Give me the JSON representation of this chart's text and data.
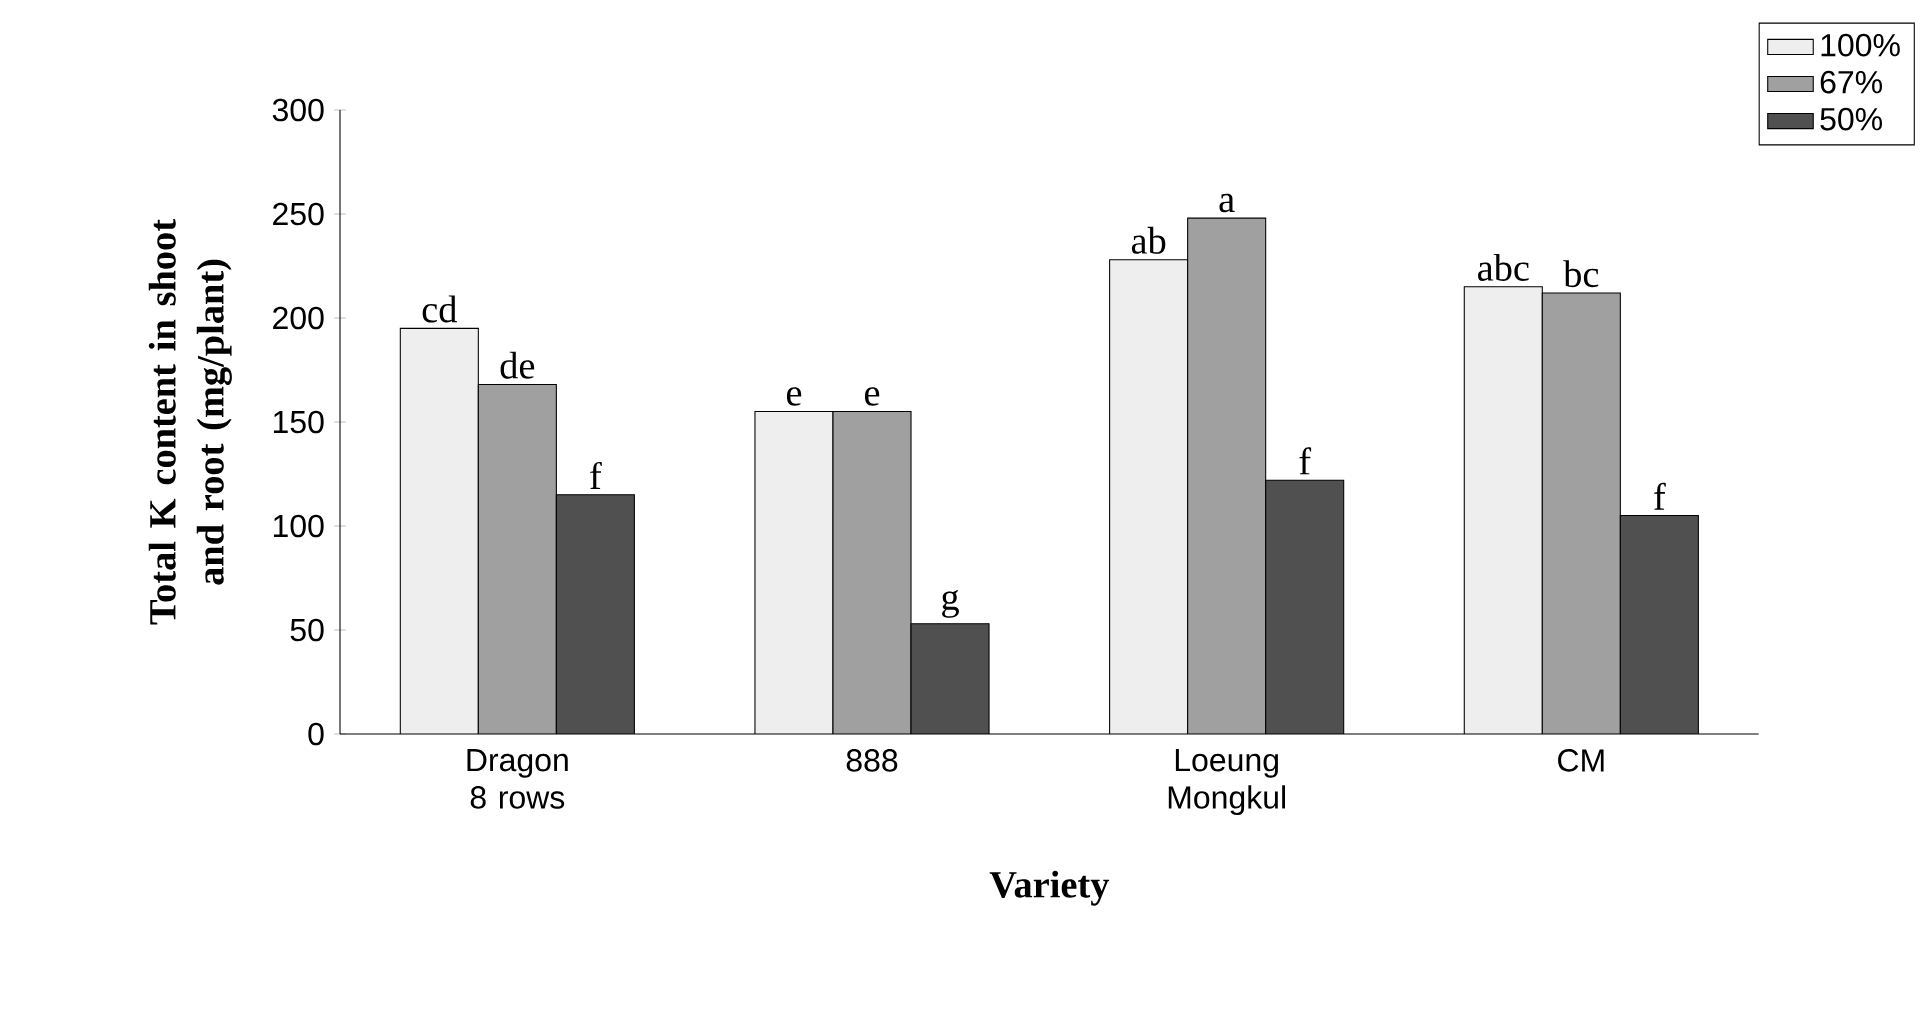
{
  "chart_data": {
    "type": "bar",
    "xlabel": "Variety",
    "ylabel": "Total K content in shoot and root (mg/plant)",
    "categories": [
      "Dragon 8 rows",
      "888",
      "Loeung Mongkul",
      "CM"
    ],
    "series": [
      {
        "name": "100%",
        "color": "#eeeeee",
        "values": [
          195,
          155,
          228,
          215
        ]
      },
      {
        "name": "67%",
        "color": "#a0a0a0",
        "values": [
          168,
          155,
          248,
          212
        ]
      },
      {
        "name": "50%",
        "color": "#505050",
        "values": [
          115,
          53,
          122,
          105
        ]
      }
    ],
    "ylim": [
      0,
      300
    ],
    "yticks": [
      0,
      50,
      100,
      150,
      200,
      250,
      300
    ],
    "grid": false,
    "legend": "top right",
    "annotations": [
      "cd",
      "de",
      "f",
      "e",
      "e",
      "g",
      "ab",
      "a",
      "f",
      "abc",
      "bc",
      "f"
    ]
  }
}
